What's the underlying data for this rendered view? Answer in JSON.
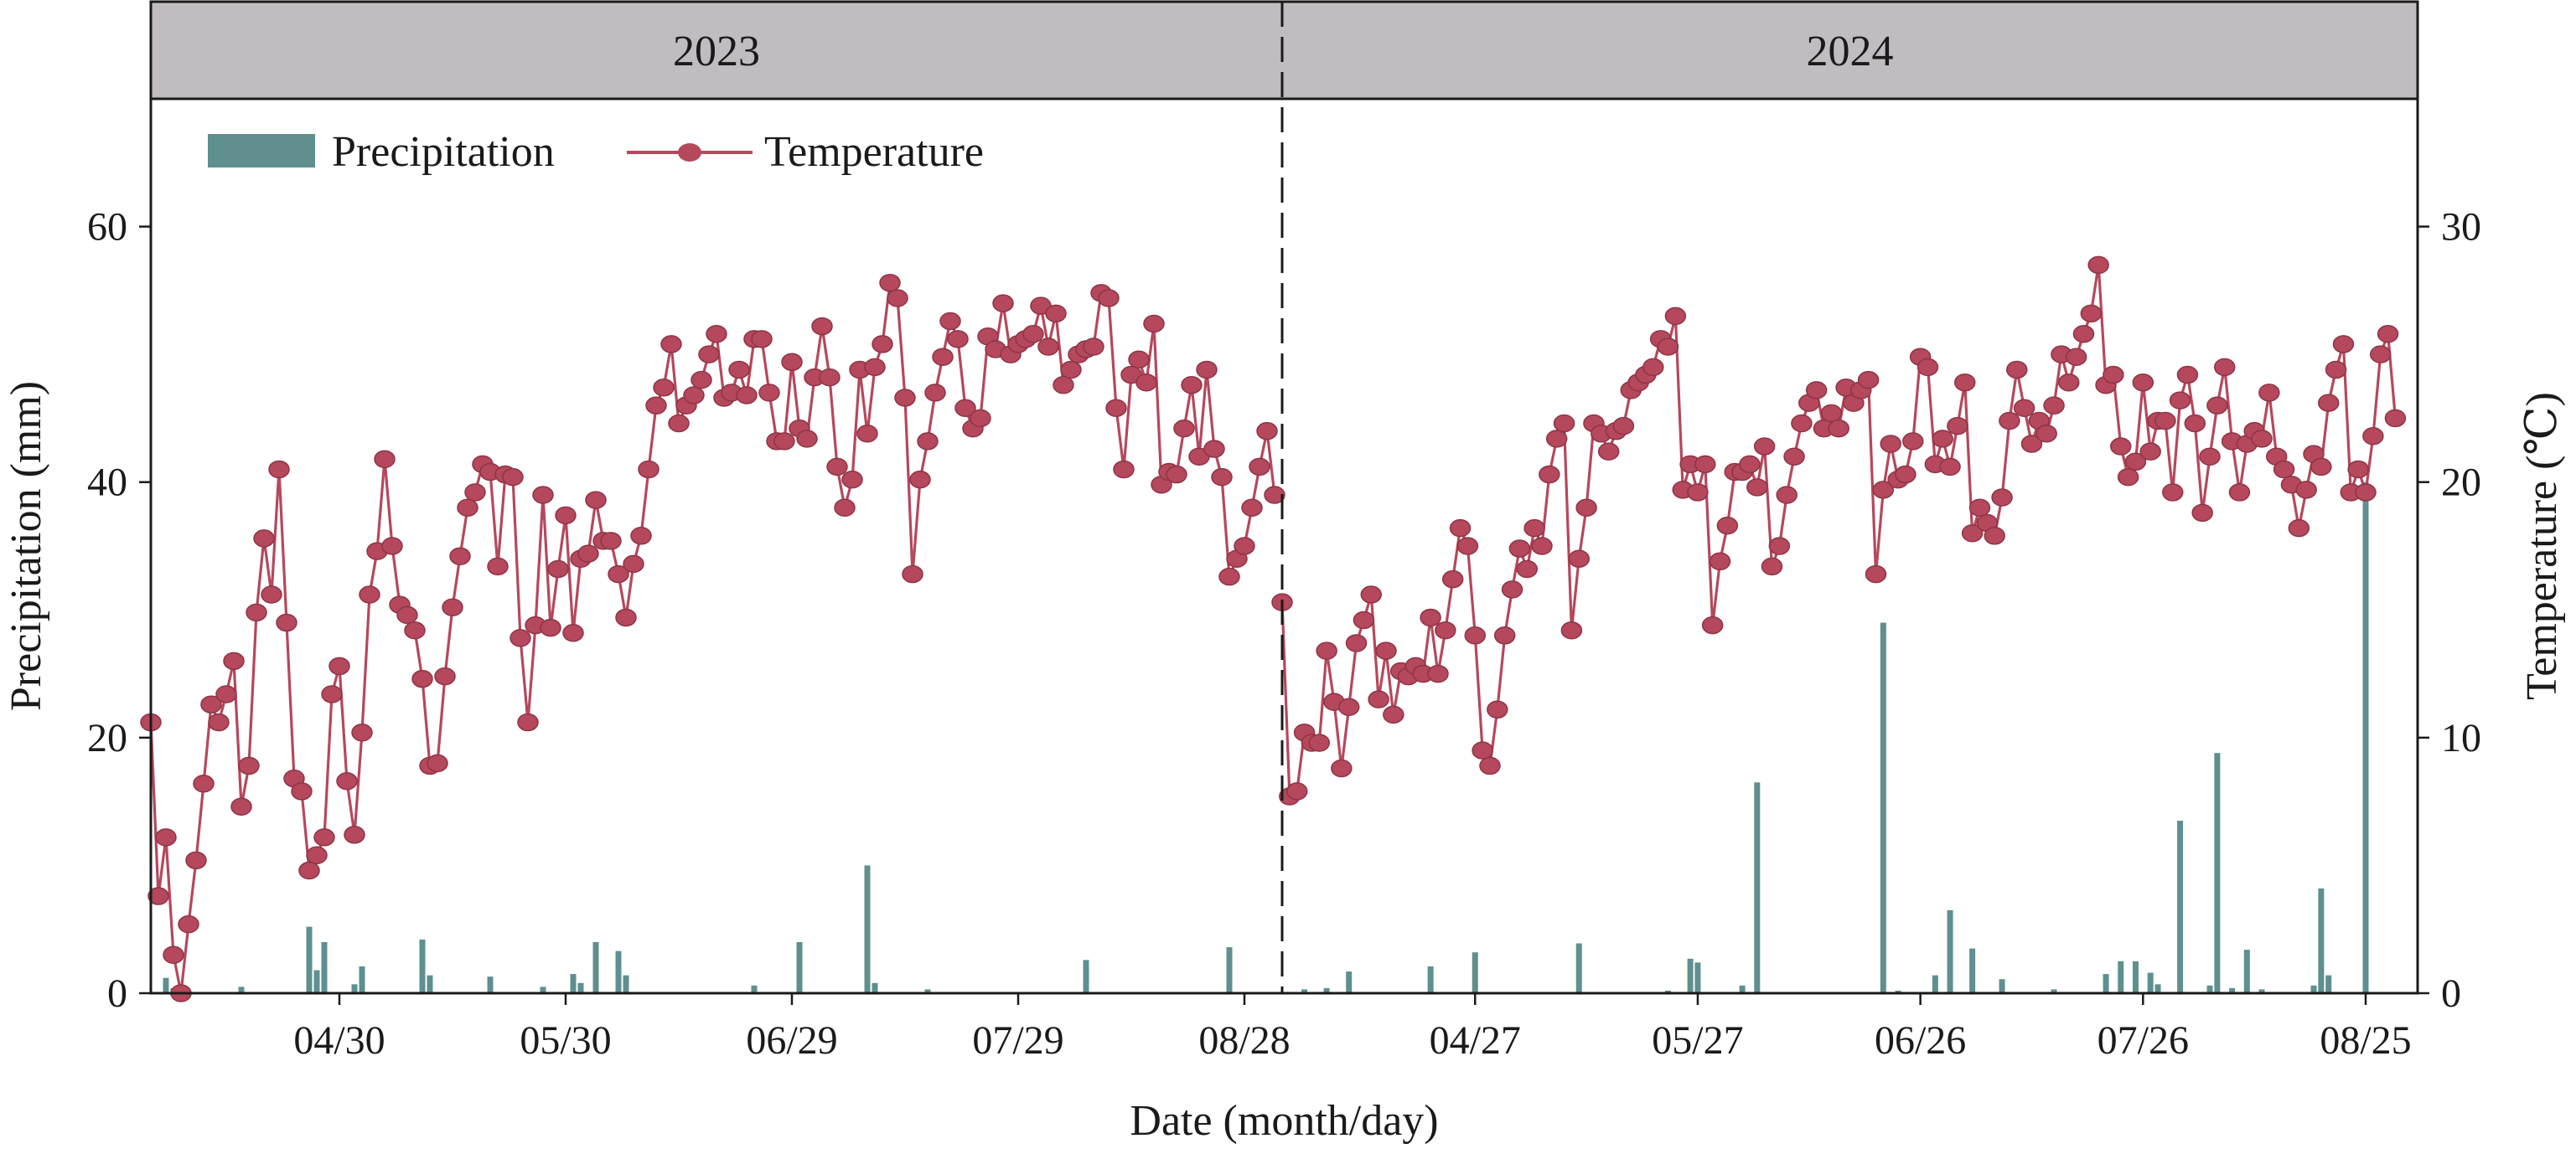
{
  "chart_data": {
    "type": "bar+line",
    "xlabel": "Date (month/day)",
    "ylabel_left": "Precipitation (mm)",
    "ylabel_right": "Temperature (℃)",
    "ylim_left": [
      0,
      70
    ],
    "ylim_right": [
      0,
      35
    ],
    "yticks_left": [
      0,
      20,
      40,
      60
    ],
    "yticks_right": [
      0,
      10,
      20,
      30
    ],
    "legend": [
      "Precipitation",
      "Temperature"
    ],
    "legend_position": "top-left",
    "colors": {
      "precipitation": "#5f8f8f",
      "temperature": "#b5485c",
      "header": "#c0bcc0"
    },
    "panels": [
      {
        "year_label": "2023",
        "start_date": "2023-04-05",
        "end_date": "2023-09-02",
        "xticks": [
          {
            "date": "2023-04-30",
            "label": "04/30"
          },
          {
            "date": "2023-05-30",
            "label": "05/30"
          },
          {
            "date": "2023-06-29",
            "label": "06/29"
          },
          {
            "date": "2023-07-29",
            "label": "07/29"
          },
          {
            "date": "2023-08-28",
            "label": "08/28"
          }
        ],
        "precipitation": [
          {
            "date": "2023-04-07",
            "mm": 1.2
          },
          {
            "date": "2023-04-08",
            "mm": 0.4
          },
          {
            "date": "2023-04-17",
            "mm": 0.5
          },
          {
            "date": "2023-04-26",
            "mm": 5.2
          },
          {
            "date": "2023-04-27",
            "mm": 1.8
          },
          {
            "date": "2023-04-28",
            "mm": 4.0
          },
          {
            "date": "2023-05-02",
            "mm": 0.7
          },
          {
            "date": "2023-05-03",
            "mm": 2.1
          },
          {
            "date": "2023-05-11",
            "mm": 4.2
          },
          {
            "date": "2023-05-12",
            "mm": 1.4
          },
          {
            "date": "2023-05-20",
            "mm": 1.3
          },
          {
            "date": "2023-05-27",
            "mm": 0.5
          },
          {
            "date": "2023-05-31",
            "mm": 1.5
          },
          {
            "date": "2023-06-01",
            "mm": 0.8
          },
          {
            "date": "2023-06-03",
            "mm": 4.0
          },
          {
            "date": "2023-06-06",
            "mm": 3.3
          },
          {
            "date": "2023-06-07",
            "mm": 1.4
          },
          {
            "date": "2023-06-24",
            "mm": 0.6
          },
          {
            "date": "2023-06-30",
            "mm": 4.0
          },
          {
            "date": "2023-07-09",
            "mm": 10.0
          },
          {
            "date": "2023-07-10",
            "mm": 0.8
          },
          {
            "date": "2023-07-17",
            "mm": 0.3
          },
          {
            "date": "2023-08-07",
            "mm": 2.6
          },
          {
            "date": "2023-08-26",
            "mm": 3.6
          }
        ],
        "temperature": [
          10.6,
          3.8,
          6.1,
          1.5,
          0.0,
          2.7,
          5.2,
          8.2,
          11.3,
          10.6,
          11.7,
          13.0,
          7.3,
          8.9,
          14.9,
          17.8,
          15.6,
          20.5,
          14.5,
          8.4,
          7.9,
          4.8,
          5.4,
          6.1,
          11.7,
          12.8,
          8.3,
          6.2,
          10.2,
          15.6,
          17.3,
          20.9,
          17.5,
          15.2,
          14.8,
          14.2,
          12.3,
          8.9,
          9.0,
          12.4,
          15.1,
          17.1,
          19.0,
          19.6,
          20.7,
          20.4,
          16.7,
          20.3,
          20.2,
          13.9,
          10.6,
          14.4,
          19.5,
          14.3,
          16.6,
          18.7,
          14.1,
          17.0,
          17.2,
          19.3,
          17.7,
          17.7,
          16.4,
          14.7,
          16.8,
          17.9,
          20.5,
          23.0,
          23.7,
          25.4,
          22.3,
          23.0,
          23.4,
          24.0,
          25.0,
          25.8,
          23.3,
          23.5,
          24.4,
          23.4,
          25.6,
          25.6,
          23.5,
          21.6,
          21.6,
          24.7,
          22.1,
          21.7,
          24.1,
          26.1,
          24.1,
          20.6,
          19.0,
          20.1,
          24.4,
          21.9,
          24.5,
          25.4,
          27.8,
          27.2,
          23.3,
          16.4,
          20.1,
          21.6,
          23.5,
          24.9,
          26.3,
          25.6,
          22.9,
          22.1,
          22.5,
          25.7,
          25.2,
          27.0,
          25.0,
          25.4,
          25.6,
          25.8,
          26.9,
          25.3,
          26.6,
          23.8,
          24.4,
          25.0,
          25.2,
          25.3,
          27.4,
          27.2,
          22.9,
          20.5,
          24.2,
          24.8,
          23.9,
          26.2,
          19.9,
          20.4,
          20.3,
          22.1,
          23.8,
          21.0,
          24.4,
          21.3,
          20.2,
          16.3,
          17.0,
          17.5,
          19.0,
          20.6,
          22.0,
          19.5
        ]
      },
      {
        "year_label": "2024",
        "start_date": "2024-04-01",
        "end_date": "2024-09-01",
        "xticks": [
          {
            "date": "2024-04-27",
            "label": "04/27"
          },
          {
            "date": "2024-05-27",
            "label": "05/27"
          },
          {
            "date": "2024-06-26",
            "label": "06/26"
          },
          {
            "date": "2024-07-26",
            "label": "07/26"
          },
          {
            "date": "2024-08-25",
            "label": "08/25"
          }
        ],
        "precipitation": [
          {
            "date": "2024-04-04",
            "mm": 0.3
          },
          {
            "date": "2024-04-07",
            "mm": 0.4
          },
          {
            "date": "2024-04-10",
            "mm": 1.7
          },
          {
            "date": "2024-04-21",
            "mm": 2.1
          },
          {
            "date": "2024-04-27",
            "mm": 3.2
          },
          {
            "date": "2024-05-11",
            "mm": 3.9
          },
          {
            "date": "2024-05-23",
            "mm": 0.2
          },
          {
            "date": "2024-05-26",
            "mm": 2.7
          },
          {
            "date": "2024-05-27",
            "mm": 2.4
          },
          {
            "date": "2024-06-02",
            "mm": 0.6
          },
          {
            "date": "2024-06-04",
            "mm": 16.5
          },
          {
            "date": "2024-06-21",
            "mm": 29.0
          },
          {
            "date": "2024-06-23",
            "mm": 0.2
          },
          {
            "date": "2024-06-28",
            "mm": 1.4
          },
          {
            "date": "2024-06-30",
            "mm": 6.5
          },
          {
            "date": "2024-07-03",
            "mm": 3.5
          },
          {
            "date": "2024-07-07",
            "mm": 1.1
          },
          {
            "date": "2024-07-14",
            "mm": 0.3
          },
          {
            "date": "2024-07-21",
            "mm": 1.5
          },
          {
            "date": "2024-07-23",
            "mm": 2.5
          },
          {
            "date": "2024-07-25",
            "mm": 2.5
          },
          {
            "date": "2024-07-27",
            "mm": 1.6
          },
          {
            "date": "2024-07-28",
            "mm": 0.7
          },
          {
            "date": "2024-07-31",
            "mm": 13.5
          },
          {
            "date": "2024-08-04",
            "mm": 0.6
          },
          {
            "date": "2024-08-05",
            "mm": 18.8
          },
          {
            "date": "2024-08-07",
            "mm": 0.4
          },
          {
            "date": "2024-08-09",
            "mm": 3.4
          },
          {
            "date": "2024-08-11",
            "mm": 0.3
          },
          {
            "date": "2024-08-18",
            "mm": 0.6
          },
          {
            "date": "2024-08-19",
            "mm": 8.2
          },
          {
            "date": "2024-08-20",
            "mm": 1.4
          },
          {
            "date": "2024-08-25",
            "mm": 40.0
          }
        ],
        "temperature": [
          15.3,
          7.7,
          7.9,
          10.2,
          9.8,
          9.8,
          13.4,
          11.4,
          8.8,
          11.2,
          13.7,
          14.6,
          15.6,
          11.5,
          13.4,
          10.9,
          12.6,
          12.4,
          12.8,
          12.5,
          14.7,
          12.5,
          14.2,
          16.2,
          18.2,
          17.5,
          14.0,
          9.5,
          8.9,
          11.1,
          14.0,
          15.8,
          17.4,
          16.6,
          18.2,
          17.5,
          20.3,
          21.7,
          22.3,
          14.2,
          17.0,
          19.0,
          22.3,
          21.9,
          21.2,
          22.0,
          22.2,
          23.6,
          23.9,
          24.2,
          24.5,
          25.6,
          25.3,
          26.5,
          19.7,
          20.7,
          19.6,
          20.7,
          14.4,
          16.9,
          18.3,
          20.4,
          20.4,
          20.7,
          19.8,
          21.4,
          16.7,
          17.5,
          19.5,
          21.0,
          22.3,
          23.1,
          23.6,
          22.1,
          22.7,
          22.1,
          23.7,
          23.1,
          23.6,
          24.0,
          16.4,
          19.7,
          21.5,
          20.1,
          20.3,
          21.6,
          24.9,
          24.5,
          20.7,
          21.7,
          20.6,
          22.2,
          23.9,
          18.0,
          19.0,
          18.4,
          17.9,
          19.4,
          22.4,
          24.4,
          22.9,
          21.5,
          22.4,
          21.9,
          23.0,
          25.0,
          23.9,
          24.9,
          25.8,
          26.6,
          28.5,
          23.8,
          24.2,
          21.4,
          20.2,
          20.8,
          23.9,
          21.2,
          22.4,
          22.4,
          19.6,
          23.2,
          24.2,
          22.3,
          18.8,
          21.0,
          23.0,
          24.5,
          21.6,
          19.6,
          21.5,
          22.0,
          21.7,
          23.5,
          21.0,
          20.5,
          19.9,
          18.2,
          19.7,
          21.1,
          20.6,
          23.1,
          24.4,
          25.4,
          19.6,
          20.5,
          19.6,
          21.8,
          25.0,
          25.8,
          22.5
        ]
      }
    ]
  }
}
